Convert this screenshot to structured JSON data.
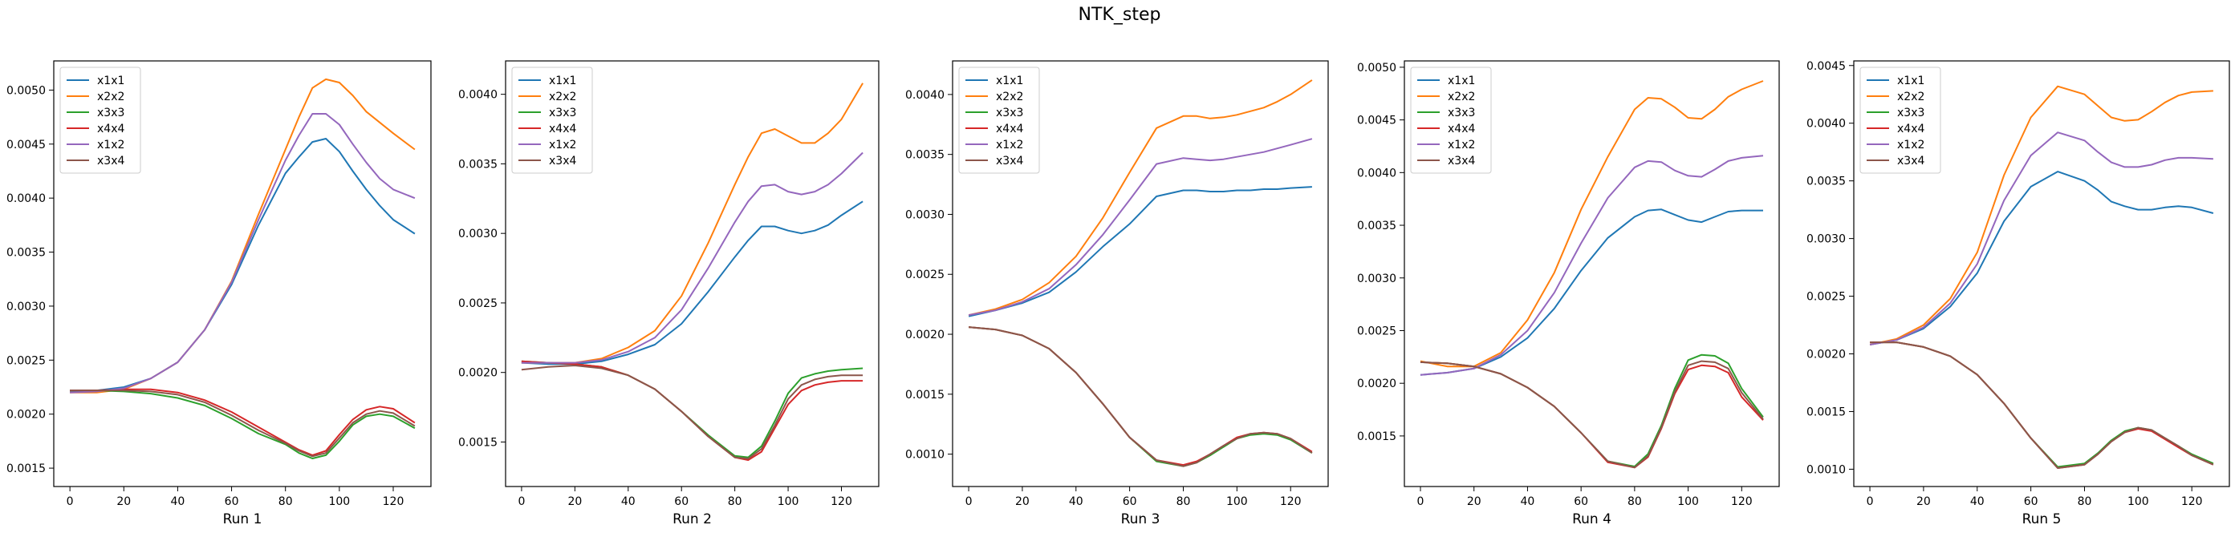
{
  "figure": {
    "title": "NTK_step"
  },
  "colors": {
    "x1x1": "#1f77b4",
    "x2x2": "#ff7f0e",
    "x3x3": "#2ca02c",
    "x4x4": "#d62728",
    "x1x2": "#9467bd",
    "x3x4": "#8c564b"
  },
  "chart_data": [
    {
      "type": "line",
      "xlabel": "Run 1",
      "legend": "upper-left",
      "grid": false,
      "xlim": [
        -6,
        134
      ],
      "ylim": [
        0.00133,
        0.00527
      ],
      "xticks": [
        0,
        20,
        40,
        60,
        80,
        100,
        120
      ],
      "yticks": [
        0.0015,
        0.002,
        0.0025,
        0.003,
        0.0035,
        0.004,
        0.0045,
        0.005
      ],
      "yticklabels": [
        "0.0015",
        "0.0020",
        "0.0025",
        "0.0030",
        "0.0035",
        "0.0040",
        "0.0045",
        "0.0050"
      ],
      "x": [
        0,
        10,
        20,
        30,
        40,
        50,
        60,
        70,
        80,
        85,
        90,
        95,
        100,
        105,
        110,
        115,
        120,
        128
      ],
      "series": [
        {
          "name": "x1x1",
          "values": [
            0.00221,
            0.00222,
            0.00225,
            0.00233,
            0.00248,
            0.00278,
            0.0032,
            0.00375,
            0.00423,
            0.00438,
            0.00452,
            0.00455,
            0.00443,
            0.00425,
            0.00408,
            0.00393,
            0.0038,
            0.00367
          ]
        },
        {
          "name": "x2x2",
          "values": [
            0.0022,
            0.0022,
            0.00223,
            0.00233,
            0.00248,
            0.00278,
            0.00323,
            0.00385,
            0.00445,
            0.00475,
            0.00502,
            0.0051,
            0.00507,
            0.00495,
            0.0048,
            0.0047,
            0.0046,
            0.00445
          ]
        },
        {
          "name": "x3x3",
          "values": [
            0.00222,
            0.00222,
            0.00221,
            0.00219,
            0.00215,
            0.00208,
            0.00196,
            0.00182,
            0.00172,
            0.00164,
            0.00159,
            0.00162,
            0.00175,
            0.0019,
            0.00198,
            0.002,
            0.00198,
            0.00187
          ]
        },
        {
          "name": "x4x4",
          "values": [
            0.00222,
            0.00222,
            0.00223,
            0.00223,
            0.0022,
            0.00213,
            0.00202,
            0.00188,
            0.00174,
            0.00167,
            0.00162,
            0.00166,
            0.00181,
            0.00195,
            0.00204,
            0.00207,
            0.00205,
            0.00192
          ]
        },
        {
          "name": "x1x2",
          "values": [
            0.0022,
            0.00221,
            0.00224,
            0.00233,
            0.00248,
            0.00278,
            0.00322,
            0.0038,
            0.00435,
            0.00458,
            0.00478,
            0.00478,
            0.00468,
            0.0045,
            0.00433,
            0.00418,
            0.00408,
            0.004
          ]
        },
        {
          "name": "x3x4",
          "values": [
            0.00222,
            0.00222,
            0.00222,
            0.00221,
            0.00218,
            0.00211,
            0.00199,
            0.00185,
            0.00173,
            0.00166,
            0.00161,
            0.00164,
            0.00178,
            0.00192,
            0.002,
            0.00203,
            0.00201,
            0.00189
          ]
        }
      ]
    },
    {
      "type": "line",
      "xlabel": "Run 2",
      "legend": "upper-left",
      "grid": false,
      "xlim": [
        -6,
        134
      ],
      "ylim": [
        0.00118,
        0.00424
      ],
      "xticks": [
        0,
        20,
        40,
        60,
        80,
        100,
        120
      ],
      "yticks": [
        0.0015,
        0.002,
        0.0025,
        0.003,
        0.0035,
        0.004
      ],
      "yticklabels": [
        "0.0015",
        "0.0020",
        "0.0025",
        "0.0030",
        "0.0035",
        "0.0040"
      ],
      "x": [
        0,
        10,
        20,
        30,
        40,
        50,
        60,
        70,
        80,
        85,
        90,
        95,
        100,
        105,
        110,
        115,
        120,
        128
      ],
      "series": [
        {
          "name": "x1x1",
          "values": [
            0.00207,
            0.00206,
            0.00206,
            0.00208,
            0.00213,
            0.0022,
            0.00235,
            0.00258,
            0.00283,
            0.00295,
            0.00305,
            0.00305,
            0.00302,
            0.003,
            0.00302,
            0.00306,
            0.00313,
            0.00323
          ]
        },
        {
          "name": "x2x2",
          "values": [
            0.00207,
            0.00207,
            0.00207,
            0.0021,
            0.00218,
            0.0023,
            0.00255,
            0.00293,
            0.00335,
            0.00355,
            0.00372,
            0.00375,
            0.0037,
            0.00365,
            0.00365,
            0.00372,
            0.00382,
            0.00408
          ]
        },
        {
          "name": "x3x3",
          "values": [
            0.00208,
            0.00207,
            0.00206,
            0.00204,
            0.00198,
            0.00188,
            0.00172,
            0.00155,
            0.0014,
            0.00139,
            0.00147,
            0.00165,
            0.00185,
            0.00196,
            0.00199,
            0.00201,
            0.00202,
            0.00203
          ]
        },
        {
          "name": "x4x4",
          "values": [
            0.00208,
            0.00207,
            0.00206,
            0.00204,
            0.00198,
            0.00188,
            0.00172,
            0.00154,
            0.00139,
            0.00137,
            0.00143,
            0.0016,
            0.00177,
            0.00187,
            0.00191,
            0.00193,
            0.00194,
            0.00194
          ]
        },
        {
          "name": "x1x2",
          "values": [
            0.00207,
            0.00207,
            0.00207,
            0.00209,
            0.00215,
            0.00225,
            0.00245,
            0.00275,
            0.00308,
            0.00323,
            0.00334,
            0.00335,
            0.0033,
            0.00328,
            0.0033,
            0.00335,
            0.00343,
            0.00358
          ]
        },
        {
          "name": "x3x4",
          "values": [
            0.00202,
            0.00204,
            0.00205,
            0.00203,
            0.00198,
            0.00188,
            0.00172,
            0.00154,
            0.00139,
            0.00138,
            0.00145,
            0.00162,
            0.00181,
            0.00191,
            0.00195,
            0.00197,
            0.00198,
            0.00198
          ]
        }
      ]
    },
    {
      "type": "line",
      "xlabel": "Run 3",
      "legend": "upper-left",
      "grid": false,
      "xlim": [
        -6,
        134
      ],
      "ylim": [
        0.00073,
        0.00428
      ],
      "xticks": [
        0,
        20,
        40,
        60,
        80,
        100,
        120
      ],
      "yticks": [
        0.001,
        0.0015,
        0.002,
        0.0025,
        0.003,
        0.0035,
        0.004
      ],
      "yticklabels": [
        "0.0010",
        "0.0015",
        "0.0020",
        "0.0025",
        "0.0030",
        "0.0035",
        "0.0040"
      ],
      "x": [
        0,
        10,
        20,
        30,
        40,
        50,
        60,
        70,
        80,
        85,
        90,
        95,
        100,
        105,
        110,
        115,
        120,
        128
      ],
      "series": [
        {
          "name": "x1x1",
          "values": [
            0.00215,
            0.0022,
            0.00226,
            0.00235,
            0.00252,
            0.00273,
            0.00292,
            0.00315,
            0.0032,
            0.0032,
            0.00319,
            0.00319,
            0.0032,
            0.0032,
            0.00321,
            0.00321,
            0.00322,
            0.00323
          ]
        },
        {
          "name": "x2x2",
          "values": [
            0.00216,
            0.00221,
            0.00229,
            0.00243,
            0.00265,
            0.00297,
            0.00335,
            0.00372,
            0.00382,
            0.00382,
            0.0038,
            0.00381,
            0.00383,
            0.00386,
            0.00389,
            0.00394,
            0.004,
            0.00412
          ]
        },
        {
          "name": "x3x3",
          "values": [
            0.00206,
            0.00204,
            0.00199,
            0.00188,
            0.00168,
            0.00142,
            0.00114,
            0.00094,
            0.0009,
            0.00093,
            0.00099,
            0.00106,
            0.00113,
            0.00116,
            0.00117,
            0.00116,
            0.00112,
            0.00101
          ]
        },
        {
          "name": "x4x4",
          "values": [
            0.00206,
            0.00204,
            0.00199,
            0.00188,
            0.00168,
            0.00142,
            0.00114,
            0.00095,
            0.00091,
            0.00094,
            0.001,
            0.00107,
            0.00114,
            0.00117,
            0.00118,
            0.00117,
            0.00113,
            0.00102
          ]
        },
        {
          "name": "x1x2",
          "values": [
            0.00216,
            0.0022,
            0.00227,
            0.00238,
            0.00258,
            0.00283,
            0.00312,
            0.00342,
            0.00347,
            0.00346,
            0.00345,
            0.00346,
            0.00348,
            0.0035,
            0.00352,
            0.00355,
            0.00358,
            0.00363
          ]
        },
        {
          "name": "x3x4",
          "values": [
            0.00206,
            0.00204,
            0.00199,
            0.00188,
            0.00168,
            0.00142,
            0.00114,
            0.00095,
            0.0009,
            0.00093,
            0.001,
            0.00107,
            0.00113,
            0.00117,
            0.00118,
            0.00117,
            0.00113,
            0.00101
          ]
        }
      ]
    },
    {
      "type": "line",
      "xlabel": "Run 4",
      "legend": "upper-left",
      "grid": false,
      "xlim": [
        -6,
        134
      ],
      "ylim": [
        0.00102,
        0.00506
      ],
      "xticks": [
        0,
        20,
        40,
        60,
        80,
        100,
        120
      ],
      "yticks": [
        0.0015,
        0.002,
        0.0025,
        0.003,
        0.0035,
        0.004,
        0.0045,
        0.005
      ],
      "yticklabels": [
        "0.0015",
        "0.0020",
        "0.0025",
        "0.0030",
        "0.0035",
        "0.0040",
        "0.0045",
        "0.0050"
      ],
      "x": [
        0,
        10,
        20,
        30,
        40,
        50,
        60,
        70,
        80,
        85,
        90,
        95,
        100,
        105,
        110,
        115,
        120,
        128
      ],
      "series": [
        {
          "name": "x1x1",
          "values": [
            0.00208,
            0.0021,
            0.00214,
            0.00225,
            0.00243,
            0.00271,
            0.00307,
            0.00338,
            0.00358,
            0.00364,
            0.00365,
            0.0036,
            0.00355,
            0.00353,
            0.00358,
            0.00363,
            0.00364,
            0.00364
          ]
        },
        {
          "name": "x2x2",
          "values": [
            0.00221,
            0.00216,
            0.00216,
            0.00229,
            0.0026,
            0.00305,
            0.00365,
            0.00415,
            0.0046,
            0.00471,
            0.0047,
            0.00462,
            0.00452,
            0.00451,
            0.0046,
            0.00472,
            0.00479,
            0.00487
          ]
        },
        {
          "name": "x3x3",
          "values": [
            0.0022,
            0.00219,
            0.00216,
            0.00209,
            0.00196,
            0.00178,
            0.00153,
            0.00126,
            0.00121,
            0.00133,
            0.0016,
            0.00195,
            0.00222,
            0.00227,
            0.00226,
            0.00219,
            0.00195,
            0.00168
          ]
        },
        {
          "name": "x4x4",
          "values": [
            0.0022,
            0.00219,
            0.00216,
            0.00209,
            0.00196,
            0.00178,
            0.00153,
            0.00125,
            0.0012,
            0.0013,
            0.00157,
            0.0019,
            0.00213,
            0.00217,
            0.00216,
            0.0021,
            0.00187,
            0.00165
          ]
        },
        {
          "name": "x1x2",
          "values": [
            0.00208,
            0.0021,
            0.00214,
            0.00227,
            0.0025,
            0.00286,
            0.00333,
            0.00376,
            0.00405,
            0.00411,
            0.0041,
            0.00402,
            0.00397,
            0.00396,
            0.00403,
            0.00411,
            0.00414,
            0.00416
          ]
        },
        {
          "name": "x3x4",
          "values": [
            0.0022,
            0.00219,
            0.00216,
            0.00209,
            0.00196,
            0.00178,
            0.00153,
            0.00126,
            0.0012,
            0.00131,
            0.00158,
            0.00192,
            0.00217,
            0.00221,
            0.0022,
            0.00214,
            0.00191,
            0.00166
          ]
        }
      ]
    },
    {
      "type": "line",
      "xlabel": "Run 5",
      "legend": "upper-left",
      "grid": false,
      "xlim": [
        -6,
        134
      ],
      "ylim": [
        0.00085,
        0.00454
      ],
      "xticks": [
        0,
        20,
        40,
        60,
        80,
        100,
        120
      ],
      "yticks": [
        0.001,
        0.0015,
        0.002,
        0.0025,
        0.003,
        0.0035,
        0.004,
        0.0045
      ],
      "yticklabels": [
        "0.0010",
        "0.0015",
        "0.0020",
        "0.0025",
        "0.0030",
        "0.0035",
        "0.0040",
        "0.0045"
      ],
      "x": [
        0,
        10,
        20,
        30,
        40,
        50,
        60,
        70,
        80,
        85,
        90,
        95,
        100,
        105,
        110,
        115,
        120,
        128
      ],
      "series": [
        {
          "name": "x1x1",
          "values": [
            0.00208,
            0.00212,
            0.00222,
            0.00241,
            0.0027,
            0.00315,
            0.00345,
            0.00358,
            0.0035,
            0.00342,
            0.00332,
            0.00328,
            0.00325,
            0.00325,
            0.00327,
            0.00328,
            0.00327,
            0.00322
          ]
        },
        {
          "name": "x2x2",
          "values": [
            0.00208,
            0.00213,
            0.00225,
            0.00248,
            0.00288,
            0.00355,
            0.00405,
            0.00432,
            0.00425,
            0.00415,
            0.00405,
            0.00402,
            0.00403,
            0.0041,
            0.00418,
            0.00424,
            0.00427,
            0.00428
          ]
        },
        {
          "name": "x3x3",
          "values": [
            0.0021,
            0.0021,
            0.00206,
            0.00198,
            0.00182,
            0.00157,
            0.00127,
            0.00102,
            0.00105,
            0.00114,
            0.00125,
            0.00133,
            0.00136,
            0.00134,
            0.00127,
            0.0012,
            0.00113,
            0.00105
          ]
        },
        {
          "name": "x4x4",
          "values": [
            0.0021,
            0.0021,
            0.00206,
            0.00198,
            0.00182,
            0.00157,
            0.00127,
            0.00101,
            0.00104,
            0.00113,
            0.00124,
            0.00132,
            0.00135,
            0.00133,
            0.00126,
            0.00119,
            0.00112,
            0.00104
          ]
        },
        {
          "name": "x1x2",
          "values": [
            0.00208,
            0.00212,
            0.00223,
            0.00244,
            0.00278,
            0.00333,
            0.00372,
            0.00392,
            0.00385,
            0.00375,
            0.00366,
            0.00362,
            0.00362,
            0.00364,
            0.00368,
            0.0037,
            0.0037,
            0.00369
          ]
        },
        {
          "name": "x3x4",
          "values": [
            0.0021,
            0.0021,
            0.00206,
            0.00198,
            0.00182,
            0.00157,
            0.00127,
            0.00101,
            0.00104,
            0.00113,
            0.00124,
            0.00132,
            0.00136,
            0.00134,
            0.00127,
            0.0012,
            0.00112,
            0.00104
          ]
        }
      ]
    }
  ]
}
